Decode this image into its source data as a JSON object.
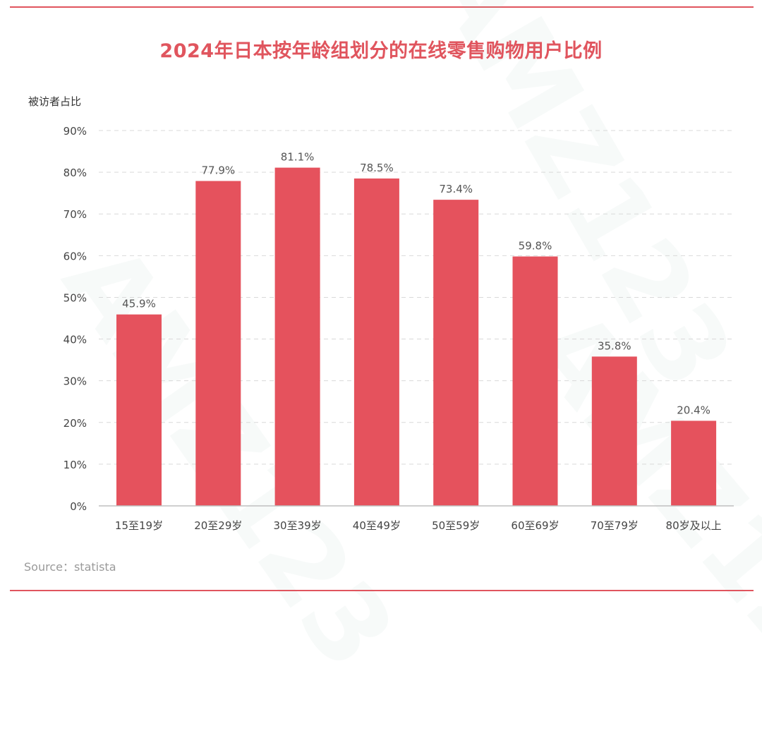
{
  "title": "2024年日本按年龄组划分的在线零售购物用户比例",
  "watermark": "AMZ123",
  "source": "Source：statista",
  "colors": {
    "accent": "#e0555e",
    "bar": "#e5525d",
    "grid": "#d9d9d9",
    "axis_text": "#444444",
    "label_text": "#555555"
  },
  "chart_data": {
    "type": "bar",
    "title": "2024年日本按年龄组划分的在线零售购物用户比例",
    "xlabel": "",
    "ylabel": "被访者占比",
    "categories": [
      "15至19岁",
      "20至29岁",
      "30至39岁",
      "40至49岁",
      "50至59岁",
      "60至69岁",
      "70至79岁",
      "80岁及以上"
    ],
    "values": [
      45.9,
      77.9,
      81.1,
      78.5,
      73.4,
      59.8,
      35.8,
      20.4
    ],
    "value_labels": [
      "45.9%",
      "77.9%",
      "81.1%",
      "78.5%",
      "73.4%",
      "59.8%",
      "35.8%",
      "20.4%"
    ],
    "ylim": [
      0,
      90
    ],
    "yticks": [
      0,
      10,
      20,
      30,
      40,
      50,
      60,
      70,
      80,
      90
    ],
    "ytick_labels": [
      "0%",
      "10%",
      "20%",
      "30%",
      "40%",
      "50%",
      "60%",
      "70%",
      "80%",
      "90%"
    ],
    "grid": true,
    "legend": "none"
  }
}
